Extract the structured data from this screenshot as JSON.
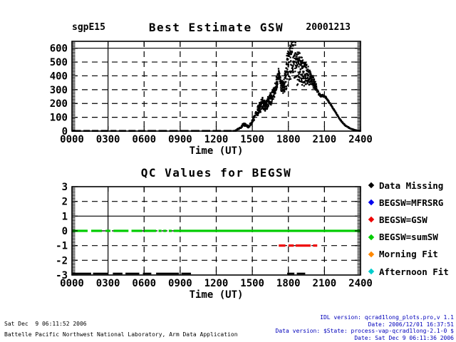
{
  "page": {
    "bg": "#ffffff"
  },
  "top_plot": {
    "site_label": "sgpE15",
    "title": "Best Estimate GSW",
    "date_label": "20001213",
    "xlabel": "Time (UT)"
  },
  "qc_plot": {
    "title": "QC Values for BEGSW",
    "xlabel": "Time (UT)"
  },
  "legend": {
    "items": [
      {
        "label": "Data Missing",
        "color": "#000000"
      },
      {
        "label": "BEGSW=MFRSRG",
        "color": "#0000ee"
      },
      {
        "label": "BEGSW=GSW",
        "color": "#ee0000"
      },
      {
        "label": "BEGSW=sumSW",
        "color": "#00cc00"
      },
      {
        "label": "Morning Fit",
        "color": "#ff8800"
      },
      {
        "label": "Afternoon Fit",
        "color": "#00cccc"
      }
    ]
  },
  "footer": {
    "left_line1": "Sat Dec  9 06:11:52 2006",
    "left_line2": "Battelle Pacific Northwest National Laboratory, Arm Data Application",
    "right_line1": "IDL version: qcrad1long_plots.pro,v 1.1",
    "right_line2": "Date: 2006/12/01 16:37:51",
    "right_line3": "Data version: $State: process-vap-qcrad1long-2.1-0 $",
    "right_line4": "Date: Sat Dec  9 06:11:36 2006",
    "right_color": "#0000bb"
  },
  "chart_data": [
    {
      "type": "scatter",
      "title": "Best Estimate GSW",
      "site": "sgpE15",
      "date": "20001213",
      "xlabel": "Time (UT)",
      "xlim": [
        0,
        24
      ],
      "ylim": [
        0,
        650
      ],
      "x_tick_hours": [
        0,
        3,
        6,
        9,
        12,
        15,
        18,
        21,
        24
      ],
      "x_tick_labels": [
        "0000",
        "0300",
        "0600",
        "0900",
        "1200",
        "1500",
        "1800",
        "2100",
        "2400"
      ],
      "y_ticks": [
        0,
        100,
        200,
        300,
        400,
        500,
        600
      ],
      "grid": "dashed",
      "solid_x_grid": [
        3
      ],
      "solid_y_grid": [
        600
      ],
      "marker_color": "#000000",
      "baseline_value": 2,
      "baseline_segments": [
        [
          0,
          0.75
        ],
        [
          0.95,
          1.5
        ],
        [
          1.65,
          2.2
        ],
        [
          2.4,
          3.0
        ],
        [
          3.2,
          3.7
        ],
        [
          3.9,
          4.5
        ],
        [
          4.7,
          5.3
        ],
        [
          5.5,
          6.1
        ],
        [
          6.3,
          7.0
        ],
        [
          7.2,
          7.9
        ],
        [
          8.1,
          8.8
        ],
        [
          9.0,
          9.7
        ],
        [
          9.9,
          10.6
        ],
        [
          10.8,
          11.5
        ],
        [
          11.7,
          12.4
        ],
        [
          12.6,
          13.3
        ],
        [
          13.35,
          13.7
        ]
      ],
      "curve_anchors": [
        [
          13.6,
          4,
          2
        ],
        [
          14.0,
          22,
          8
        ],
        [
          14.25,
          50,
          12
        ],
        [
          14.5,
          42,
          12
        ],
        [
          14.7,
          30,
          8
        ],
        [
          15.0,
          70,
          15
        ],
        [
          15.3,
          120,
          25
        ],
        [
          15.6,
          170,
          35
        ],
        [
          15.9,
          205,
          40
        ],
        [
          16.1,
          180,
          35
        ],
        [
          16.35,
          215,
          40
        ],
        [
          16.6,
          240,
          40
        ],
        [
          16.85,
          295,
          45
        ],
        [
          17.05,
          350,
          50
        ],
        [
          17.2,
          420,
          35
        ],
        [
          17.35,
          345,
          35
        ],
        [
          17.55,
          305,
          45
        ],
        [
          17.75,
          370,
          90
        ],
        [
          17.95,
          470,
          130
        ],
        [
          18.15,
          520,
          130
        ],
        [
          18.4,
          530,
          120
        ],
        [
          18.65,
          485,
          130
        ],
        [
          18.9,
          450,
          110
        ],
        [
          19.15,
          435,
          95
        ],
        [
          19.4,
          420,
          80
        ],
        [
          19.65,
          405,
          65
        ],
        [
          19.85,
          385,
          50
        ],
        [
          20.05,
          360,
          40
        ],
        [
          20.25,
          330,
          25
        ],
        [
          20.45,
          285,
          15
        ],
        [
          20.65,
          255,
          10
        ],
        [
          20.85,
          255,
          12
        ],
        [
          21.05,
          250,
          10
        ],
        [
          21.25,
          225,
          8
        ],
        [
          21.5,
          195,
          7
        ],
        [
          21.75,
          160,
          6
        ],
        [
          22.0,
          125,
          5
        ],
        [
          22.25,
          90,
          4
        ],
        [
          22.5,
          62,
          4
        ],
        [
          22.75,
          40,
          3
        ],
        [
          23.0,
          26,
          3
        ],
        [
          23.25,
          15,
          2
        ],
        [
          23.5,
          8,
          2
        ],
        [
          23.75,
          4,
          1
        ],
        [
          24.0,
          2,
          1
        ]
      ],
      "noise_region": [
        15.4,
        20.35
      ]
    },
    {
      "type": "line-segments",
      "title": "QC Values for BEGSW",
      "xlabel": "Time (UT)",
      "xlim": [
        0,
        24
      ],
      "ylim": [
        -3,
        3
      ],
      "x_tick_hours": [
        0,
        3,
        6,
        9,
        12,
        15,
        18,
        21,
        24
      ],
      "x_tick_labels": [
        "0000",
        "0300",
        "0600",
        "0900",
        "1200",
        "1500",
        "1800",
        "2100",
        "2400"
      ],
      "y_ticks": [
        -3,
        -2,
        -1,
        0,
        1,
        2,
        3
      ],
      "grid": "dashed",
      "solid_x_grid": [
        3
      ],
      "solid_y_grid": [
        1
      ],
      "series": [
        {
          "name": "BEGSW=sumSW",
          "color": "#00cc00",
          "value": 0,
          "thickness": 3.2,
          "segments": [
            [
              0.0,
              1.3
            ],
            [
              1.6,
              2.5
            ],
            [
              2.8,
              3.2
            ],
            [
              3.45,
              4.7
            ],
            [
              4.95,
              5.85
            ],
            [
              6.0,
              7.0
            ],
            [
              7.2,
              7.45
            ],
            [
              7.6,
              7.85
            ],
            [
              8.05,
              8.3
            ],
            [
              8.45,
              24.0
            ]
          ]
        },
        {
          "name": "BEGSW=GSW",
          "color": "#ee0000",
          "value": -1,
          "thickness": 3.2,
          "segments": [
            [
              17.2,
              17.75
            ],
            [
              18.0,
              18.45
            ],
            [
              18.6,
              19.85
            ],
            [
              20.05,
              20.4
            ]
          ]
        },
        {
          "name": "Data Missing",
          "color": "#000000",
          "value": -3,
          "thickness": 2.5,
          "segments": [
            [
              0.05,
              1.6
            ],
            [
              1.75,
              3.0
            ],
            [
              3.4,
              4.2
            ],
            [
              4.45,
              5.6
            ],
            [
              5.9,
              6.6
            ],
            [
              7.0,
              8.9
            ],
            [
              9.1,
              9.9
            ],
            [
              17.9,
              18.5
            ],
            [
              18.7,
              19.4
            ]
          ]
        }
      ]
    }
  ]
}
